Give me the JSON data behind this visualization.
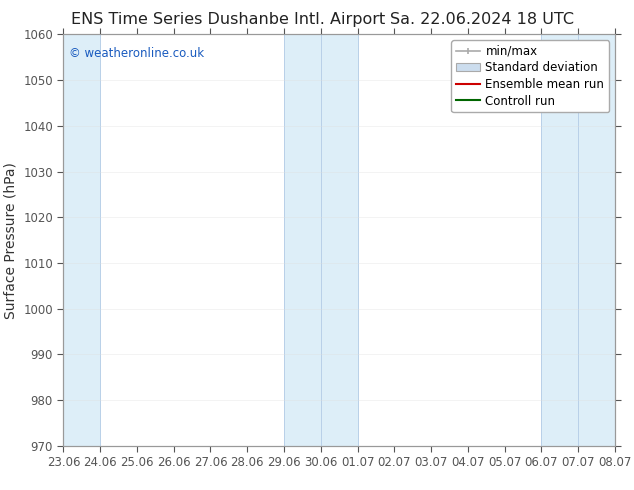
{
  "title_left": "ENS Time Series Dushanbe Intl. Airport",
  "title_right": "Sa. 22.06.2024 18 UTC",
  "ylabel": "Surface Pressure (hPa)",
  "ylim": [
    970,
    1060
  ],
  "yticks": [
    970,
    980,
    990,
    1000,
    1010,
    1020,
    1030,
    1040,
    1050,
    1060
  ],
  "x_start_num": 0,
  "x_end_num": 45,
  "x_tick_labels": [
    "23.06",
    "24.06",
    "25.06",
    "26.06",
    "27.06",
    "28.06",
    "29.06",
    "30.06",
    "01.07",
    "02.07",
    "03.07",
    "04.07",
    "05.07",
    "06.07",
    "07.07",
    "08.07"
  ],
  "x_tick_positions": [
    0,
    3,
    6,
    9,
    12,
    15,
    18,
    21,
    24,
    27,
    30,
    33,
    36,
    39,
    42,
    45
  ],
  "shaded_bands": [
    {
      "x_start": 0,
      "x_end": 3,
      "color": "#ddeef8"
    },
    {
      "x_start": 18,
      "x_end": 24,
      "color": "#ddeef8"
    },
    {
      "x_start": 39,
      "x_end": 45,
      "color": "#ddeef8"
    }
  ],
  "watermark_text": "© weatheronline.co.uk",
  "watermark_color": "#1a5bbf",
  "legend_items": [
    {
      "label": "min/max",
      "color": "#aaaaaa",
      "type": "errorbar"
    },
    {
      "label": "Standard deviation",
      "color": "#ccddee",
      "type": "box"
    },
    {
      "label": "Ensemble mean run",
      "color": "#cc0000",
      "type": "line"
    },
    {
      "label": "Controll run",
      "color": "#006600",
      "type": "line"
    }
  ],
  "bg_color": "#ffffff",
  "plot_bg_color": "#ffffff",
  "spine_color": "#999999",
  "tick_color": "#555555",
  "title_fontsize": 11.5,
  "axis_label_fontsize": 10,
  "tick_fontsize": 8.5,
  "legend_fontsize": 8.5
}
